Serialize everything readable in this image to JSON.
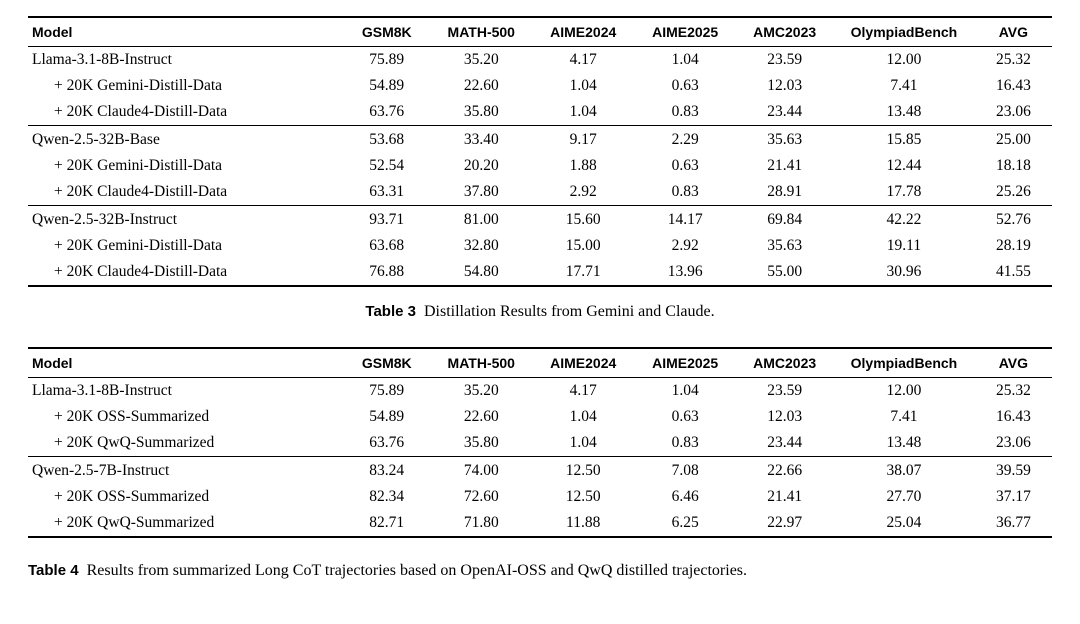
{
  "tables": [
    {
      "caption_label": "Table 3",
      "caption_text": "Distillation Results from Gemini and Claude.",
      "headers": [
        "Model",
        "GSM8K",
        "MATH-500",
        "AIME2024",
        "AIME2025",
        "AMC2023",
        "OlympiadBench",
        "AVG"
      ],
      "groups": [
        {
          "rows": [
            {
              "model": "Llama-3.1-8B-Instruct",
              "mono": false,
              "values": [
                "75.89",
                "35.20",
                "4.17",
                "1.04",
                "23.59",
                "12.00",
                "25.32"
              ]
            },
            {
              "model": "+ 20K Gemini-Distill-Data",
              "mono": true,
              "values": [
                "54.89",
                "22.60",
                "1.04",
                "0.63",
                "12.03",
                "7.41",
                "16.43"
              ]
            },
            {
              "model": "+ 20K Claude4-Distill-Data",
              "mono": true,
              "values": [
                "63.76",
                "35.80",
                "1.04",
                "0.83",
                "23.44",
                "13.48",
                "23.06"
              ]
            }
          ]
        },
        {
          "rows": [
            {
              "model": "Qwen-2.5-32B-Base",
              "mono": false,
              "values": [
                "53.68",
                "33.40",
                "9.17",
                "2.29",
                "35.63",
                "15.85",
                "25.00"
              ]
            },
            {
              "model": "+ 20K Gemini-Distill-Data",
              "mono": true,
              "values": [
                "52.54",
                "20.20",
                "1.88",
                "0.63",
                "21.41",
                "12.44",
                "18.18"
              ]
            },
            {
              "model": "+ 20K Claude4-Distill-Data",
              "mono": true,
              "values": [
                "63.31",
                "37.80",
                "2.92",
                "0.83",
                "28.91",
                "17.78",
                "25.26"
              ]
            }
          ]
        },
        {
          "rows": [
            {
              "model": "Qwen-2.5-32B-Instruct",
              "mono": false,
              "values": [
                "93.71",
                "81.00",
                "15.60",
                "14.17",
                "69.84",
                "42.22",
                "52.76"
              ]
            },
            {
              "model": "+ 20K Gemini-Distill-Data",
              "mono": true,
              "values": [
                "63.68",
                "32.80",
                "15.00",
                "2.92",
                "35.63",
                "19.11",
                "28.19"
              ]
            },
            {
              "model": "+ 20K Claude4-Distill-Data",
              "mono": true,
              "values": [
                "76.88",
                "54.80",
                "17.71",
                "13.96",
                "55.00",
                "30.96",
                "41.55"
              ]
            }
          ]
        }
      ]
    },
    {
      "caption_label": "Table 4",
      "caption_text": "Results from summarized Long CoT trajectories based on OpenAI-OSS and QwQ distilled trajectories.",
      "headers": [
        "Model",
        "GSM8K",
        "MATH-500",
        "AIME2024",
        "AIME2025",
        "AMC2023",
        "OlympiadBench",
        "AVG"
      ],
      "groups": [
        {
          "rows": [
            {
              "model": "Llama-3.1-8B-Instruct",
              "mono": false,
              "values": [
                "75.89",
                "35.20",
                "4.17",
                "1.04",
                "23.59",
                "12.00",
                "25.32"
              ]
            },
            {
              "model": "+ 20K OSS-Summarized",
              "mono": true,
              "values": [
                "54.89",
                "22.60",
                "1.04",
                "0.63",
                "12.03",
                "7.41",
                "16.43"
              ]
            },
            {
              "model": "+ 20K QwQ-Summarized",
              "mono": true,
              "values": [
                "63.76",
                "35.80",
                "1.04",
                "0.83",
                "23.44",
                "13.48",
                "23.06"
              ]
            }
          ]
        },
        {
          "rows": [
            {
              "model": "Qwen-2.5-7B-Instruct",
              "mono": false,
              "values": [
                "83.24",
                "74.00",
                "12.50",
                "7.08",
                "22.66",
                "38.07",
                "39.59"
              ]
            },
            {
              "model": "+ 20K OSS-Summarized",
              "mono": true,
              "values": [
                "82.34",
                "72.60",
                "12.50",
                "6.46",
                "21.41",
                "27.70",
                "37.17"
              ]
            },
            {
              "model": "+ 20K QwQ-Summarized",
              "mono": true,
              "values": [
                "82.71",
                "71.80",
                "11.88",
                "6.25",
                "22.97",
                "25.04",
                "36.77"
              ]
            }
          ]
        }
      ]
    }
  ]
}
